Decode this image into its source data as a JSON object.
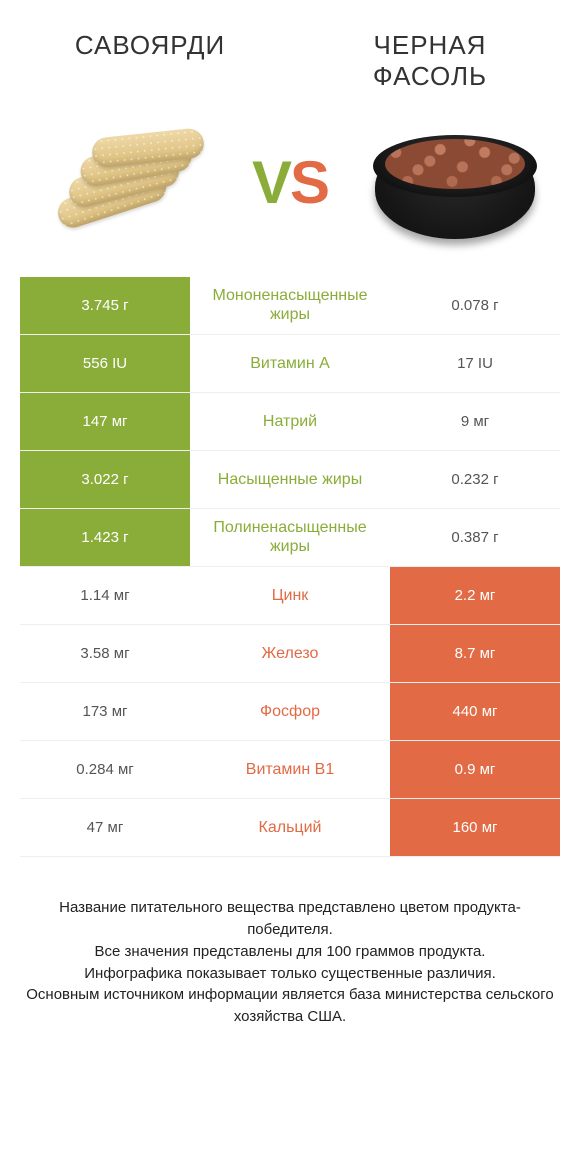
{
  "colors": {
    "green": "#8aad3a",
    "orange": "#e26a45",
    "text": "#333333",
    "muted": "#555555",
    "background": "#ffffff"
  },
  "header": {
    "left_title": "САВОЯРДИ",
    "right_title": "ЧЕРНАЯ ФАСОЛЬ",
    "vs_left": "V",
    "vs_right": "S"
  },
  "rows": [
    {
      "label": "Мононенасыщенные жиры",
      "left": "3.745 г",
      "right": "0.078 г",
      "winner": "left"
    },
    {
      "label": "Витамин A",
      "left": "556 IU",
      "right": "17 IU",
      "winner": "left"
    },
    {
      "label": "Натрий",
      "left": "147 мг",
      "right": "9 мг",
      "winner": "left"
    },
    {
      "label": "Насыщенные жиры",
      "left": "3.022 г",
      "right": "0.232 г",
      "winner": "left"
    },
    {
      "label": "Полиненасыщенные жиры",
      "left": "1.423 г",
      "right": "0.387 г",
      "winner": "left"
    },
    {
      "label": "Цинк",
      "left": "1.14 мг",
      "right": "2.2 мг",
      "winner": "right"
    },
    {
      "label": "Железо",
      "left": "3.58 мг",
      "right": "8.7 мг",
      "winner": "right"
    },
    {
      "label": "Фосфор",
      "left": "173 мг",
      "right": "440 мг",
      "winner": "right"
    },
    {
      "label": "Витамин B1",
      "left": "0.284 мг",
      "right": "0.9 мг",
      "winner": "right"
    },
    {
      "label": "Кальций",
      "left": "47 мг",
      "right": "160 мг",
      "winner": "right"
    }
  ],
  "footer": {
    "line1": "Название питательного вещества представлено цветом продукта-победителя.",
    "line2": "Все значения представлены для 100 граммов продукта.",
    "line3": "Инфографика показывает только существенные различия.",
    "line4": "Основным источником информации является база министерства сельского хозяйства США."
  }
}
